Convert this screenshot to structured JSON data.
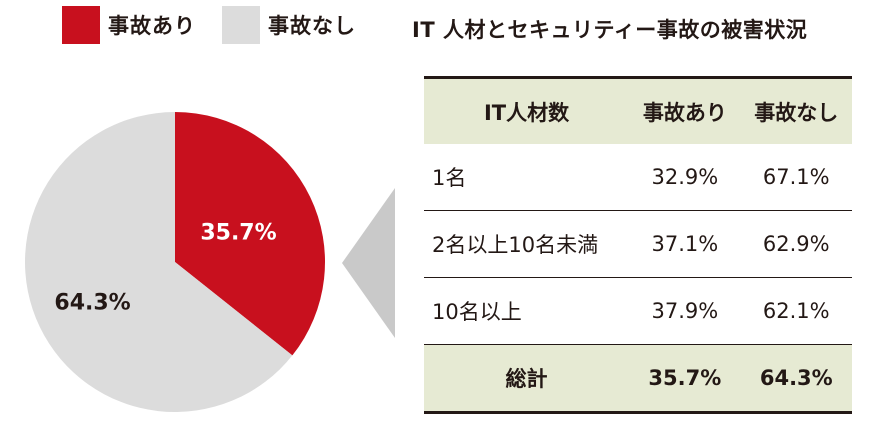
{
  "legend": [
    {
      "label": "事故あり",
      "color": "#c8101e"
    },
    {
      "label": "事故なし",
      "color": "#dcdcdc"
    }
  ],
  "chart_data": [
    {
      "type": "pie",
      "slices": [
        {
          "label": "事故あり",
          "value": 35.7,
          "display": "35.7%",
          "color": "#c8101e"
        },
        {
          "label": "事故なし",
          "value": 64.3,
          "display": "64.3%",
          "color": "#dcdcdc"
        }
      ]
    },
    {
      "type": "table",
      "title": "IT 人材とセキュリティー事故の被害状況",
      "columns": [
        "IT人材数",
        "事故あり",
        "事故なし"
      ],
      "rows": [
        [
          "1名",
          "32.9%",
          "67.1%"
        ],
        [
          "2名以上10名未満",
          "37.1%",
          "62.9%"
        ],
        [
          "10名以上",
          "37.9%",
          "62.1%"
        ]
      ],
      "total": [
        "総計",
        "35.7%",
        "64.3%"
      ]
    }
  ],
  "colors": {
    "accent": "#c8101e",
    "neutral": "#dcdcdc",
    "header_bg": "#e6ead3",
    "callout": "#c9c9c9"
  }
}
